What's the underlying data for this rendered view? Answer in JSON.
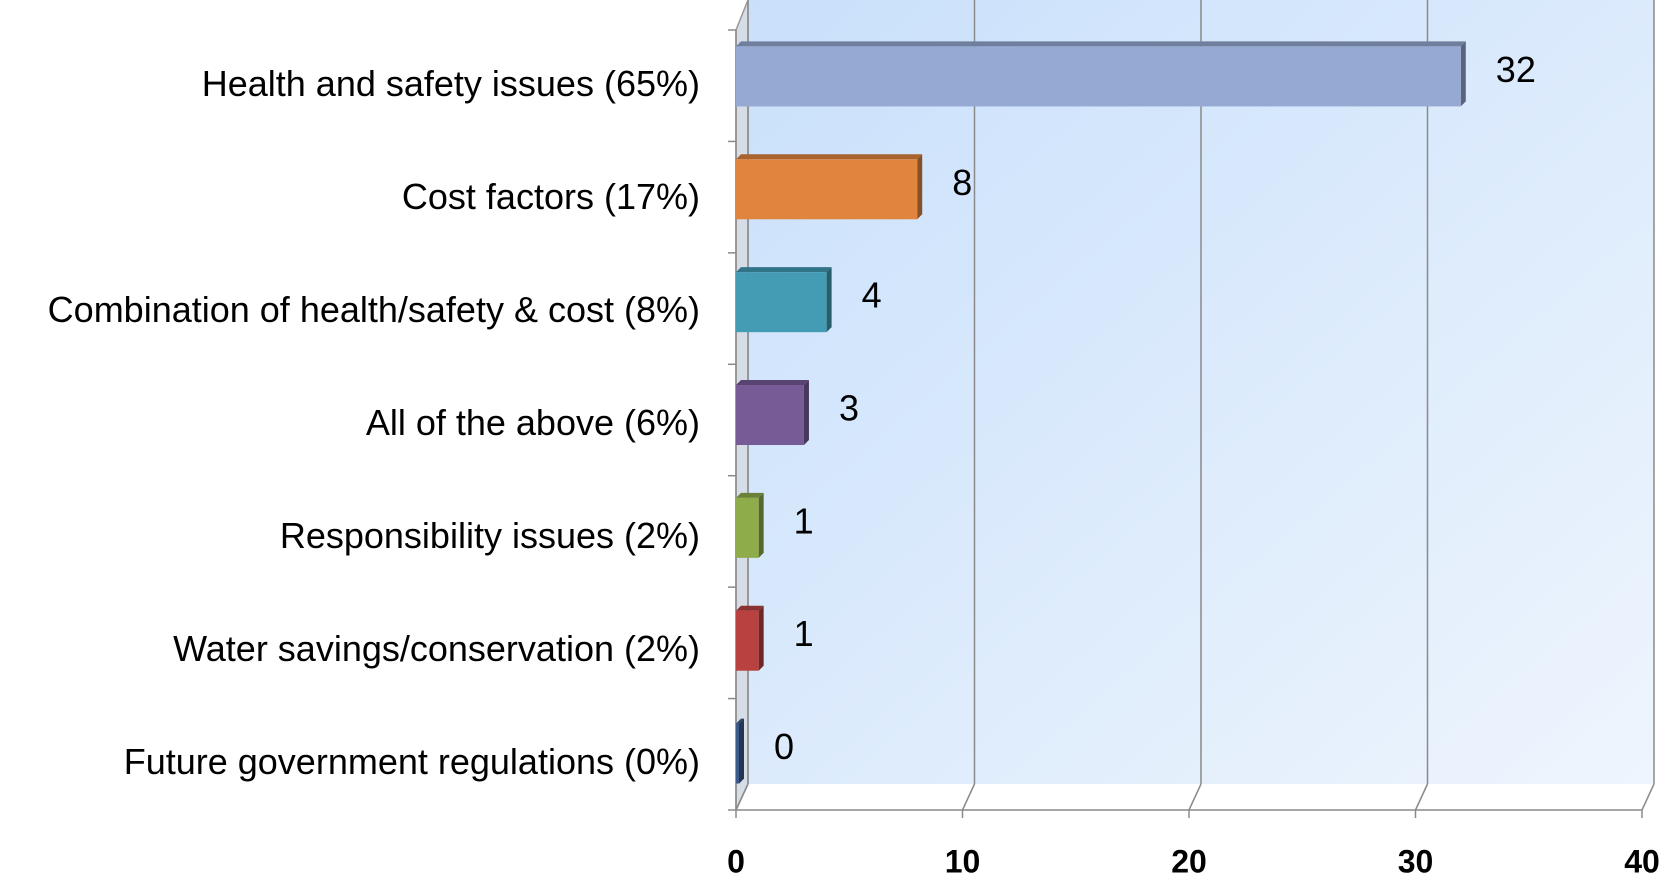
{
  "chart_data": {
    "type": "bar",
    "orientation": "horizontal",
    "categories": [
      "Health and safety issues (65%)",
      "Cost factors (17%)",
      "Combination of health/safety & cost (8%)",
      "All of the above (6%)",
      "Responsibility issues (2%)",
      "Water savings/conservation (2%)",
      "Future government regulations (0%)"
    ],
    "values": [
      32,
      8,
      4,
      3,
      1,
      1,
      0
    ],
    "colors": [
      "#95a9d3",
      "#e0843e",
      "#439bb4",
      "#765b96",
      "#8fac4a",
      "#b9413f",
      "#3c5a8c"
    ],
    "xlim": [
      0,
      40
    ],
    "xticks": [
      0,
      10,
      20,
      30,
      40
    ],
    "grid": true
  }
}
